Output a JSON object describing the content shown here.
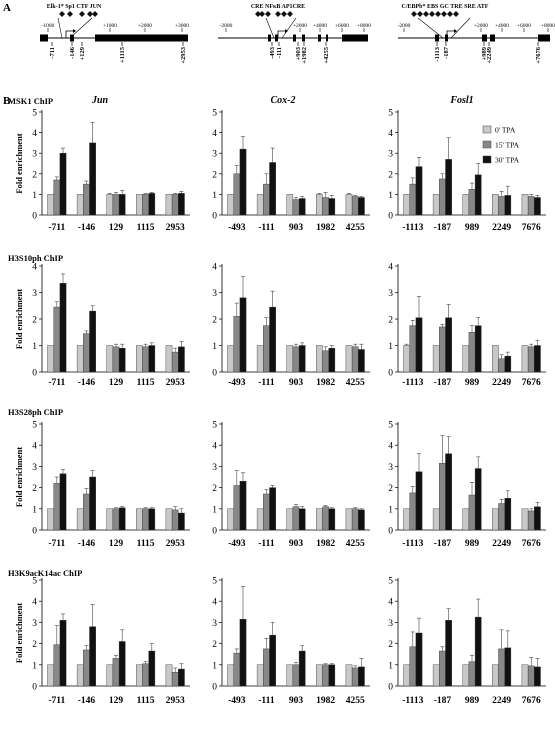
{
  "panel_a": {
    "label": "A",
    "genes": [
      {
        "id": "jun",
        "factor_label": "Elk-1* Sp1 CTF JUN",
        "scale_ticks": [
          "-1000",
          "+1000",
          "+2000",
          "+3000"
        ],
        "positions": [
          "-711",
          "-146",
          "+129",
          "+1115",
          "+2953"
        ]
      },
      {
        "id": "cox2",
        "factor_label": "CRE NFκB AP1CRE",
        "scale_ticks": [
          "-2000",
          "+2000",
          "+4000",
          "+6000",
          "+8000"
        ],
        "positions": [
          "-493",
          "-111",
          "+903",
          "+1982",
          "+4255"
        ]
      },
      {
        "id": "fosl1",
        "factor_label": "C/EBPb* EBS GC TRE SRE ATF",
        "scale_ticks": [
          "-2000",
          "+2000",
          "+4000",
          "+6000",
          "+8000"
        ],
        "positions": [
          "-1113",
          "-187",
          "+989",
          "+2249",
          "+7676"
        ]
      }
    ]
  },
  "panel_b_label": "B",
  "gene_titles": [
    "Jun",
    "Cox-2",
    "Fosl1"
  ],
  "legend": [
    "0' TPA",
    "15' TPA",
    "30' TPA"
  ],
  "colors": {
    "t0": "#c8c8c8",
    "t15": "#888888",
    "t30": "#111111"
  },
  "ylabel": "Fold enrichment",
  "chart_data": [
    {
      "type": "bar",
      "chip": "MSK1 ChIP",
      "gene": "Jun",
      "ylim": [
        0,
        5
      ],
      "categories": [
        "-711",
        "-146",
        "129",
        "1115",
        "2953"
      ],
      "series": [
        {
          "name": "0' TPA",
          "values": [
            1,
            1,
            1,
            1,
            1
          ]
        },
        {
          "name": "15' TPA",
          "values": [
            1.7,
            1.5,
            1.0,
            1.0,
            1.0
          ]
        },
        {
          "name": "30' TPA",
          "values": [
            3.0,
            3.5,
            1.0,
            1.05,
            1.05
          ]
        }
      ],
      "errors": [
        [
          0,
          0,
          0.05,
          0,
          0
        ],
        [
          0.15,
          0.15,
          0.1,
          0.05,
          0.05
        ],
        [
          0.25,
          1.0,
          0.2,
          0.05,
          0.1
        ]
      ]
    },
    {
      "type": "bar",
      "chip": "MSK1 ChIP",
      "gene": "Cox-2",
      "ylim": [
        0,
        5
      ],
      "categories": [
        "-493",
        "-111",
        "903",
        "1982",
        "4255"
      ],
      "series": [
        {
          "name": "0' TPA",
          "values": [
            1,
            1,
            1,
            1,
            1
          ]
        },
        {
          "name": "15' TPA",
          "values": [
            2.0,
            1.5,
            0.75,
            0.85,
            0.9
          ]
        },
        {
          "name": "30' TPA",
          "values": [
            3.2,
            2.55,
            0.8,
            0.8,
            0.85
          ]
        }
      ],
      "errors": [
        [
          0,
          0,
          0,
          0.05,
          0.05
        ],
        [
          0.4,
          0.5,
          0.1,
          0.25,
          0.05
        ],
        [
          0.6,
          0.7,
          0.1,
          0.15,
          0.05
        ]
      ]
    },
    {
      "type": "bar",
      "chip": "MSK1 ChIP",
      "gene": "Fosl1",
      "ylim": [
        0,
        5
      ],
      "categories": [
        "-1113",
        "-187",
        "989",
        "2249",
        "7676"
      ],
      "series": [
        {
          "name": "0' TPA",
          "values": [
            1,
            1,
            1,
            1,
            1
          ]
        },
        {
          "name": "15' TPA",
          "values": [
            1.5,
            1.75,
            1.25,
            0.9,
            0.9
          ]
        },
        {
          "name": "30' TPA",
          "values": [
            2.35,
            2.7,
            1.95,
            0.95,
            0.85
          ]
        }
      ],
      "errors": [
        [
          0,
          0,
          0,
          0,
          0
        ],
        [
          0.3,
          0.25,
          0.3,
          0.25,
          0.1
        ],
        [
          0.45,
          1.05,
          0.55,
          0.45,
          0.1
        ]
      ]
    },
    {
      "type": "bar",
      "chip": "H3S10ph ChIP",
      "gene": "Jun",
      "ylim": [
        0,
        4
      ],
      "categories": [
        "-711",
        "-146",
        "129",
        "1115",
        "2953"
      ],
      "series": [
        {
          "name": "0' TPA",
          "values": [
            1,
            1,
            1,
            1,
            1
          ]
        },
        {
          "name": "15' TPA",
          "values": [
            2.45,
            1.45,
            0.95,
            0.95,
            0.75
          ]
        },
        {
          "name": "30' TPA",
          "values": [
            3.35,
            2.3,
            0.9,
            1.0,
            0.95
          ]
        }
      ],
      "errors": [
        [
          0,
          0,
          0,
          0,
          0
        ],
        [
          0.2,
          0.1,
          0.1,
          0.1,
          0.15
        ],
        [
          0.35,
          0.2,
          0.15,
          0.1,
          0.2
        ]
      ]
    },
    {
      "type": "bar",
      "chip": "H3S10ph ChIP",
      "gene": "Cox-2",
      "ylim": [
        0,
        4
      ],
      "categories": [
        "-493",
        "-111",
        "903",
        "1982",
        "4255"
      ],
      "series": [
        {
          "name": "0' TPA",
          "values": [
            1,
            1,
            1,
            1,
            1
          ]
        },
        {
          "name": "15' TPA",
          "values": [
            2.1,
            1.75,
            0.95,
            0.8,
            0.95
          ]
        },
        {
          "name": "30' TPA",
          "values": [
            2.8,
            2.45,
            1.0,
            0.9,
            0.85
          ]
        }
      ],
      "errors": [
        [
          0,
          0,
          0,
          0,
          0
        ],
        [
          0.5,
          0.3,
          0.1,
          0.15,
          0.1
        ],
        [
          0.8,
          0.6,
          0.1,
          0.1,
          0.2
        ]
      ]
    },
    {
      "type": "bar",
      "chip": "H3S10ph ChIP",
      "gene": "Fosl1",
      "ylim": [
        0,
        4
      ],
      "categories": [
        "-1113",
        "-187",
        "989",
        "2249",
        "7676"
      ],
      "series": [
        {
          "name": "0' TPA",
          "values": [
            1,
            1,
            1,
            1,
            1
          ]
        },
        {
          "name": "15' TPA",
          "values": [
            1.75,
            1.7,
            1.5,
            0.5,
            0.95
          ]
        },
        {
          "name": "30' TPA",
          "values": [
            2.05,
            2.05,
            1.75,
            0.6,
            1.0
          ]
        }
      ],
      "errors": [
        [
          0.05,
          0,
          0,
          0,
          0
        ],
        [
          0.2,
          0.1,
          0.25,
          0.15,
          0.1
        ],
        [
          0.8,
          0.5,
          0.3,
          0.15,
          0.2
        ]
      ]
    },
    {
      "type": "bar",
      "chip": "H3S28ph ChIP",
      "gene": "Jun",
      "ylim": [
        0,
        5
      ],
      "categories": [
        "-711",
        "-146",
        "129",
        "1115",
        "2953"
      ],
      "series": [
        {
          "name": "0' TPA",
          "values": [
            1,
            1,
            1,
            1,
            1
          ]
        },
        {
          "name": "15' TPA",
          "values": [
            2.2,
            1.7,
            1.0,
            1.0,
            0.95
          ]
        },
        {
          "name": "30' TPA",
          "values": [
            2.65,
            2.5,
            1.05,
            1.0,
            0.8
          ]
        }
      ],
      "errors": [
        [
          0,
          0,
          0,
          0,
          0
        ],
        [
          0.3,
          0.25,
          0.05,
          0.05,
          0.15
        ],
        [
          0.2,
          0.3,
          0.05,
          0.05,
          0.2
        ]
      ]
    },
    {
      "type": "bar",
      "chip": "H3S28ph ChIP",
      "gene": "Cox-2",
      "ylim": [
        0,
        5
      ],
      "categories": [
        "-493",
        "-111",
        "903",
        "1982",
        "4255"
      ],
      "series": [
        {
          "name": "0' TPA",
          "values": [
            1,
            1,
            1,
            1,
            1
          ]
        },
        {
          "name": "15' TPA",
          "values": [
            2.1,
            1.7,
            1.1,
            1.1,
            1.0
          ]
        },
        {
          "name": "30' TPA",
          "values": [
            2.3,
            2.0,
            1.0,
            1.0,
            0.95
          ]
        }
      ],
      "errors": [
        [
          0,
          0,
          0,
          0,
          0
        ],
        [
          0.7,
          0.2,
          0.1,
          0.05,
          0.05
        ],
        [
          0.4,
          0.1,
          0.1,
          0.05,
          0.05
        ]
      ]
    },
    {
      "type": "bar",
      "chip": "H3S28ph ChIP",
      "gene": "Fosl1",
      "ylim": [
        0,
        5
      ],
      "categories": [
        "-1113",
        "-187",
        "989",
        "2249",
        "7676"
      ],
      "series": [
        {
          "name": "0' TPA",
          "values": [
            1,
            1,
            1,
            1,
            1
          ]
        },
        {
          "name": "15' TPA",
          "values": [
            1.75,
            3.15,
            1.65,
            1.25,
            0.9
          ]
        },
        {
          "name": "30' TPA",
          "values": [
            2.75,
            3.6,
            2.9,
            1.5,
            1.1
          ]
        }
      ],
      "errors": [
        [
          0,
          0,
          0,
          0,
          0
        ],
        [
          0.3,
          1.3,
          0.6,
          0.2,
          0.1
        ],
        [
          0.85,
          0.8,
          0.55,
          0.35,
          0.2
        ]
      ]
    },
    {
      "type": "bar",
      "chip": "H3K9acK14ac ChIP",
      "gene": "Jun",
      "ylim": [
        0,
        5
      ],
      "categories": [
        "-711",
        "-146",
        "129",
        "1115",
        "2953"
      ],
      "series": [
        {
          "name": "0' TPA",
          "values": [
            1,
            1,
            1,
            1,
            1
          ]
        },
        {
          "name": "15' TPA",
          "values": [
            1.95,
            1.7,
            1.3,
            1.05,
            0.65
          ]
        },
        {
          "name": "30' TPA",
          "values": [
            3.1,
            2.8,
            2.1,
            1.65,
            0.8
          ]
        }
      ],
      "errors": [
        [
          0,
          0,
          0,
          0,
          0
        ],
        [
          0.9,
          0.2,
          0.15,
          0.1,
          0.2
        ],
        [
          0.3,
          1.05,
          0.55,
          0.35,
          0.25
        ]
      ]
    },
    {
      "type": "bar",
      "chip": "H3K9acK14ac ChIP",
      "gene": "Cox-2",
      "ylim": [
        0,
        5
      ],
      "categories": [
        "-493",
        "-111",
        "903",
        "1982",
        "4255"
      ],
      "series": [
        {
          "name": "0' TPA",
          "values": [
            1,
            1,
            1,
            1,
            1
          ]
        },
        {
          "name": "15' TPA",
          "values": [
            1.55,
            1.75,
            1.0,
            1.0,
            0.85
          ]
        },
        {
          "name": "30' TPA",
          "values": [
            3.15,
            2.4,
            1.65,
            1.0,
            0.9
          ]
        }
      ],
      "errors": [
        [
          0,
          0,
          0,
          0,
          0
        ],
        [
          0.2,
          0.5,
          0.1,
          0.05,
          0.1
        ],
        [
          1.55,
          0.6,
          0.25,
          0.05,
          0.4
        ]
      ]
    },
    {
      "type": "bar",
      "chip": "H3K9acK14ac ChIP",
      "gene": "Fosl1",
      "ylim": [
        0,
        5
      ],
      "categories": [
        "-1113",
        "-187",
        "989",
        "2249",
        "7676"
      ],
      "series": [
        {
          "name": "0' TPA",
          "values": [
            1,
            1,
            1,
            1,
            1
          ]
        },
        {
          "name": "15' TPA",
          "values": [
            1.85,
            1.65,
            1.15,
            1.75,
            0.95
          ]
        },
        {
          "name": "30' TPA",
          "values": [
            2.5,
            3.1,
            3.25,
            1.8,
            0.9
          ]
        }
      ],
      "errors": [
        [
          0,
          0,
          0,
          0,
          0
        ],
        [
          0.7,
          0.2,
          0.3,
          0.9,
          0.4
        ],
        [
          0.7,
          0.55,
          0.85,
          0.8,
          0.4
        ]
      ]
    }
  ]
}
